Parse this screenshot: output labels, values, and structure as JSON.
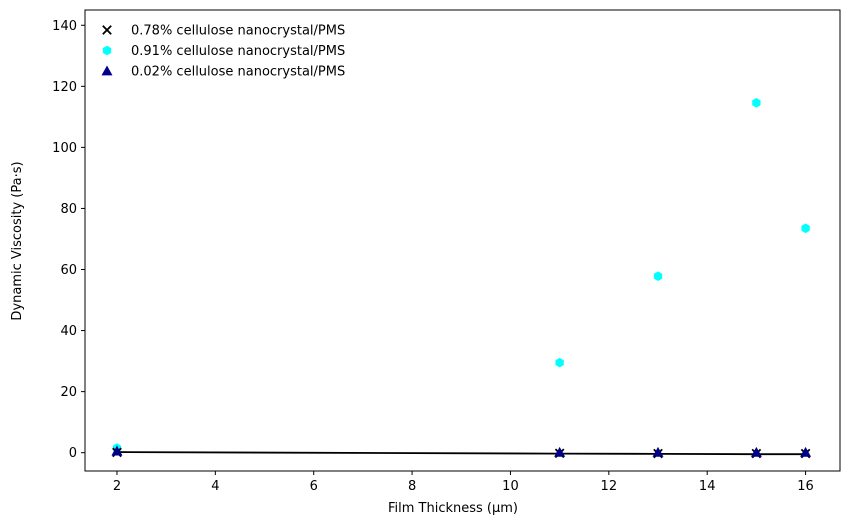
{
  "chart_data": {
    "type": "scatter",
    "xlabel": "Film Thickness (µm)",
    "ylabel": "Dynamic Viscosity (Pa·s)",
    "xlim": [
      1.35,
      16.7
    ],
    "ylim": [
      -6,
      145
    ],
    "xticks": [
      2,
      4,
      6,
      8,
      10,
      12,
      14,
      16
    ],
    "yticks": [
      0,
      20,
      40,
      60,
      80,
      100,
      120,
      140
    ],
    "grid": false,
    "legend_position": "top-left",
    "series": [
      {
        "name": "0.78% cellulose nanocrystal/PMS",
        "marker": "x",
        "color": "#000000",
        "x": [
          2,
          11,
          13,
          15,
          16
        ],
        "y": [
          0.1,
          -0.2,
          -0.3,
          -0.3,
          -0.3
        ]
      },
      {
        "name": "0.91% cellulose nanocrystal/PMS",
        "marker": "hexagon",
        "color": "#00ffff",
        "x": [
          2,
          11,
          13,
          15,
          16
        ],
        "y": [
          1.5,
          29.5,
          57.8,
          114.6,
          73.5
        ]
      },
      {
        "name": "0.02% cellulose nanocrystal/PMS",
        "marker": "triangle",
        "color": "#00008b",
        "x": [
          2,
          11,
          13,
          15,
          16
        ],
        "y": [
          0.5,
          0.1,
          0.1,
          0.1,
          0.1
        ]
      }
    ],
    "fit_line": {
      "color": "#000000",
      "x": [
        2,
        11,
        13,
        15,
        16
      ],
      "y": [
        0.2,
        -0.3,
        -0.4,
        -0.5,
        -0.5
      ]
    }
  }
}
